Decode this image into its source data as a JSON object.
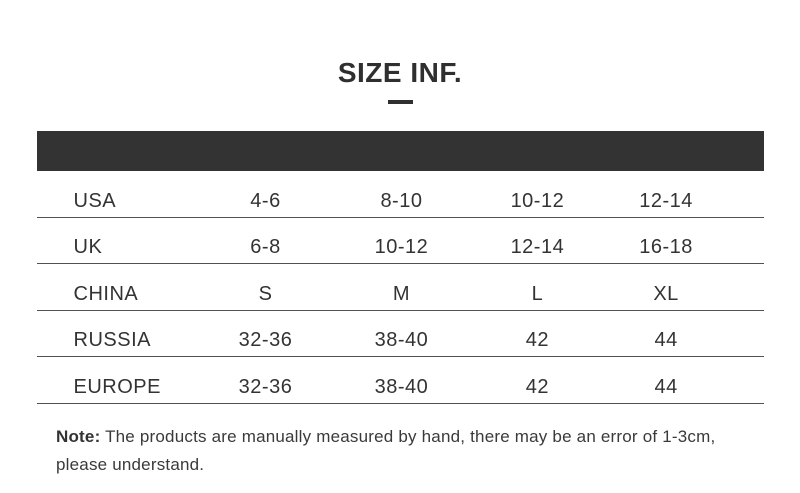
{
  "title": "SIZE INF.",
  "chart_data": {
    "type": "table",
    "title": "SIZE INF.",
    "header_bar": "empty dark band, no visible column headers",
    "rows": [
      {
        "region": "USA",
        "values": [
          "4-6",
          "8-10",
          "10-12",
          "12-14"
        ]
      },
      {
        "region": "UK",
        "values": [
          "6-8",
          "10-12",
          "12-14",
          "16-18"
        ]
      },
      {
        "region": "CHINA",
        "values": [
          "S",
          "M",
          "L",
          "XL"
        ]
      },
      {
        "region": "RUSSIA",
        "values": [
          "32-36",
          "38-40",
          "42",
          "44"
        ]
      },
      {
        "region": "EUROPE",
        "values": [
          "32-36",
          "38-40",
          "42",
          "44"
        ]
      }
    ],
    "note": "Note: The products are manually measured by hand, there may be an error of 1-3cm, please understand."
  },
  "note": {
    "label": "Note:",
    "line1": " The products are manually measured by hand, there may be an error of 1-3cm,",
    "line2": "please understand."
  },
  "colors": {
    "background": "#ffffff",
    "header_bar": "#333333",
    "text": "#333333",
    "divider": "#515151",
    "title": "#2f2f2f"
  }
}
